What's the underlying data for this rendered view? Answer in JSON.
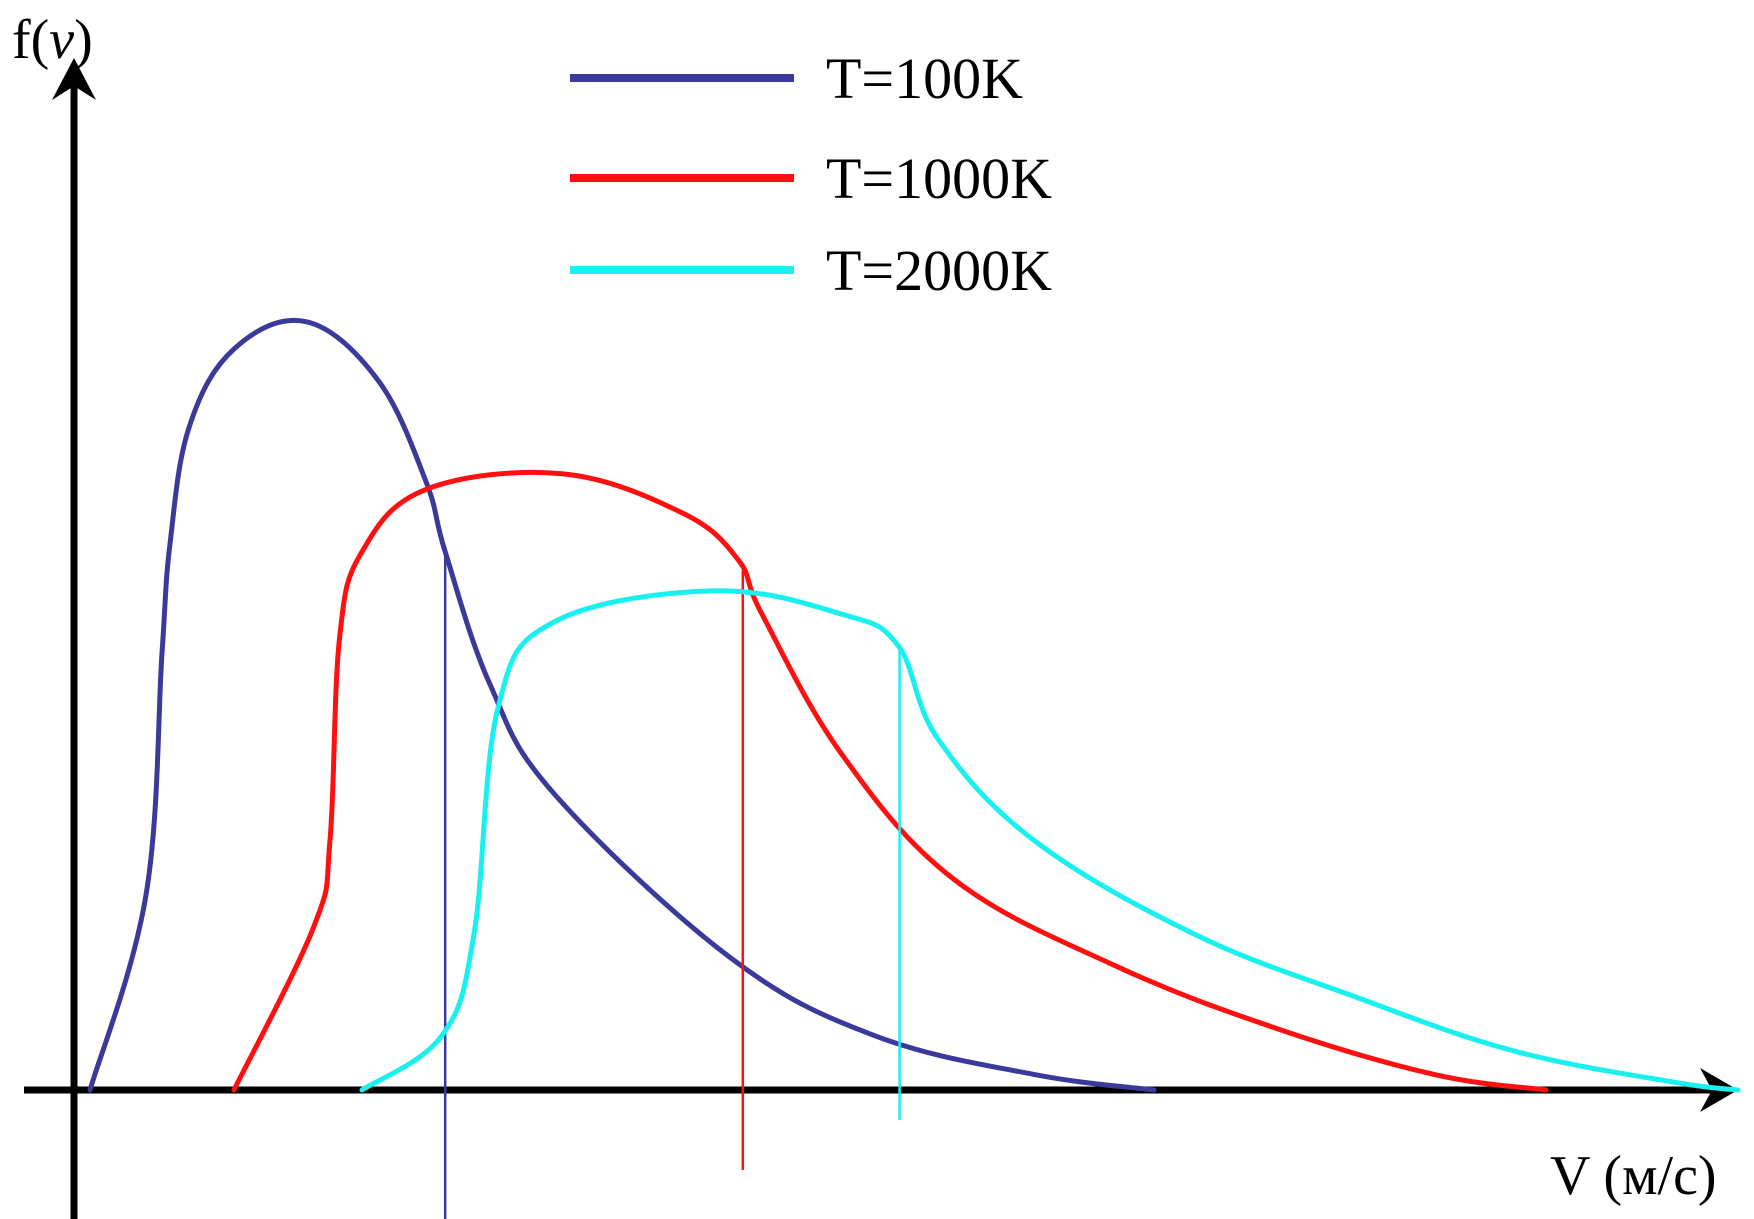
{
  "chart_data": {
    "type": "line",
    "title": "",
    "ylabel_prefix": "f(",
    "ylabel_var": "v",
    "ylabel_suffix": ")",
    "xlabel": "V (м/с)",
    "xlim": [
      0,
      10.5
    ],
    "ylim": [
      0,
      1.0
    ],
    "grid": false,
    "legend_position": "top-center",
    "series": [
      {
        "name": "T=100K",
        "color": "#3a3a9a",
        "peak_x": 1.45,
        "dropline_x": 2.32,
        "points": [
          [
            0.1,
            0.0
          ],
          [
            0.45,
            0.25
          ],
          [
            0.55,
            0.56
          ],
          [
            0.6,
            0.7
          ],
          [
            0.72,
            0.85
          ],
          [
            1.0,
            0.95
          ],
          [
            1.45,
            0.985
          ],
          [
            1.9,
            0.91
          ],
          [
            2.2,
            0.78
          ],
          [
            2.32,
            0.69
          ],
          [
            2.6,
            0.52
          ],
          [
            3.0,
            0.38
          ],
          [
            4.1,
            0.17
          ],
          [
            5.0,
            0.07
          ],
          [
            6.0,
            0.02
          ],
          [
            6.75,
            0.0
          ]
        ]
      },
      {
        "name": "T=1000K",
        "color": "#ff1010",
        "peak_x": 3.05,
        "dropline_x": 4.18,
        "points": [
          [
            1.0,
            0.0
          ],
          [
            1.5,
            0.21
          ],
          [
            1.6,
            0.32
          ],
          [
            1.66,
            0.58
          ],
          [
            1.8,
            0.69
          ],
          [
            2.2,
            0.77
          ],
          [
            3.05,
            0.79
          ],
          [
            3.8,
            0.74
          ],
          [
            4.15,
            0.68
          ],
          [
            4.3,
            0.61
          ],
          [
            4.8,
            0.43
          ],
          [
            5.5,
            0.27
          ],
          [
            6.5,
            0.16
          ],
          [
            7.5,
            0.08
          ],
          [
            8.5,
            0.02
          ],
          [
            9.2,
            0.0
          ]
        ]
      },
      {
        "name": "T=2000K",
        "color": "#19f0f0",
        "peak_x": 4.0,
        "dropline_x": 5.16,
        "points": [
          [
            1.8,
            0.0
          ],
          [
            2.3,
            0.07
          ],
          [
            2.5,
            0.2
          ],
          [
            2.65,
            0.49
          ],
          [
            3.0,
            0.6
          ],
          [
            4.0,
            0.64
          ],
          [
            4.8,
            0.61
          ],
          [
            5.15,
            0.57
          ],
          [
            5.4,
            0.45
          ],
          [
            6.0,
            0.32
          ],
          [
            7.0,
            0.2
          ],
          [
            8.0,
            0.12
          ],
          [
            9.0,
            0.05
          ],
          [
            10.0,
            0.01
          ],
          [
            10.4,
            0.0
          ]
        ]
      }
    ]
  }
}
